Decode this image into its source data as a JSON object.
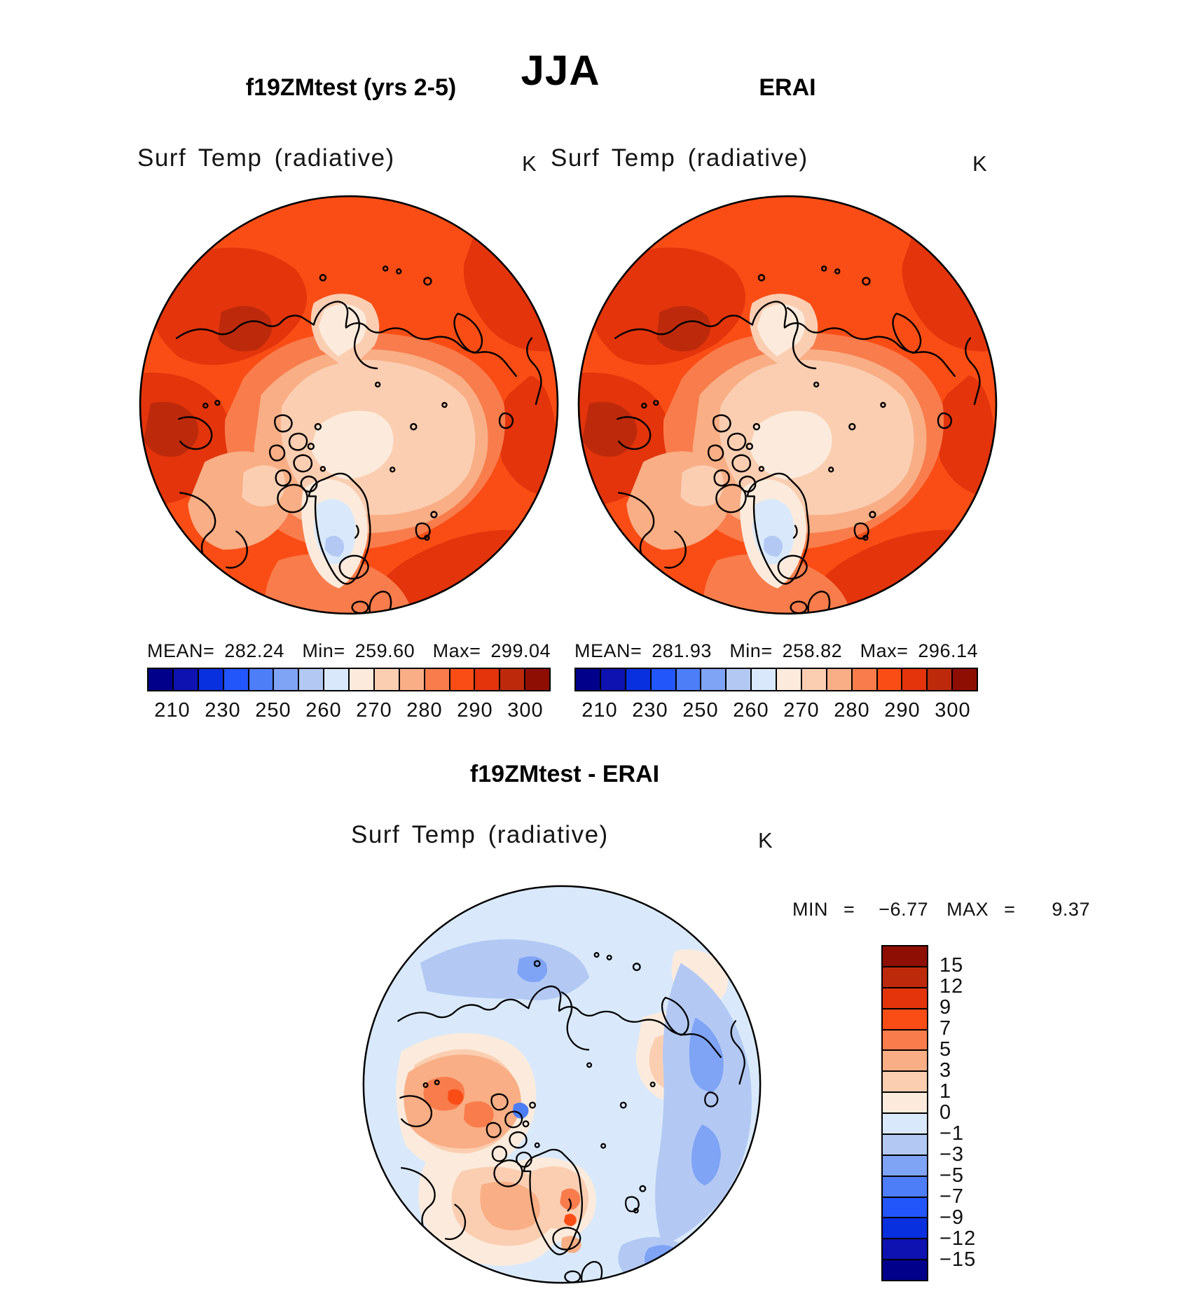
{
  "header": {
    "title": "JJA"
  },
  "palette": [
    "#00008B",
    "#0D12B0",
    "#0830DE",
    "#2255FA",
    "#4E7DF8",
    "#7FA3F5",
    "#B3C9F4",
    "#D9E9FB",
    "#FCEBDC",
    "#FBCEB2",
    "#F9AE85",
    "#F97C4C",
    "#FA4D15",
    "#E3340C",
    "#BD2A0B",
    "#8F0E03"
  ],
  "panels": {
    "model": {
      "subtitle": "f19ZMtest (yrs 2-5)",
      "var_label": "Surf Temp (radiative)",
      "units": "K",
      "stats": {
        "mean_label": "MEAN=",
        "mean": "282.24",
        "min_label": "Min=",
        "min": "259.60",
        "max_label": "Max=",
        "max": "299.04"
      },
      "colorbar_ticks": [
        "210",
        "230",
        "250",
        "260",
        "270",
        "280",
        "290",
        "300"
      ]
    },
    "obs": {
      "subtitle": "ERAI",
      "var_label": "Surf Temp (radiative)",
      "units": "K",
      "stats": {
        "mean_label": "MEAN=",
        "mean": "281.93",
        "min_label": "Min=",
        "min": "258.82",
        "max_label": "Max=",
        "max": "296.14"
      },
      "colorbar_ticks": [
        "210",
        "230",
        "250",
        "260",
        "270",
        "280",
        "290",
        "300"
      ]
    },
    "diff": {
      "subtitle": "f19ZMtest - ERAI",
      "var_label": "Surf Temp (radiative)",
      "units": "K",
      "min_label": "MIN",
      "equals": "=",
      "min": "−6.77",
      "max_label": "MAX",
      "max": "9.37",
      "colorbar_labels": [
        "15",
        "12",
        "9",
        "7",
        "5",
        "3",
        "1",
        "0",
        "−1",
        "−3",
        "−5",
        "−7",
        "−9",
        "−12",
        "−15"
      ]
    }
  },
  "chart_data": [
    {
      "type": "heatmap",
      "title": "f19ZMtest (yrs 2-5)",
      "season_title": "JJA",
      "variable": "Surf Temp (radiative)",
      "units": "K",
      "projection": "north-polar-stereographic",
      "stats": {
        "mean": 282.24,
        "min": 259.6,
        "max": 299.04
      },
      "colorbar_levels": [
        210,
        220,
        230,
        240,
        250,
        255,
        260,
        265,
        270,
        275,
        280,
        285,
        290,
        295,
        300
      ],
      "colorbar_tick_labels": [
        210,
        230,
        250,
        260,
        270,
        280,
        290,
        300
      ],
      "n_color_segments": 16,
      "legend_position": "below"
    },
    {
      "type": "heatmap",
      "title": "ERAI",
      "season_title": "JJA",
      "variable": "Surf Temp (radiative)",
      "units": "K",
      "projection": "north-polar-stereographic",
      "stats": {
        "mean": 281.93,
        "min": 258.82,
        "max": 296.14
      },
      "colorbar_levels": [
        210,
        220,
        230,
        240,
        250,
        255,
        260,
        265,
        270,
        275,
        280,
        285,
        290,
        295,
        300
      ],
      "colorbar_tick_labels": [
        210,
        230,
        250,
        260,
        270,
        280,
        290,
        300
      ],
      "n_color_segments": 16,
      "legend_position": "below"
    },
    {
      "type": "heatmap",
      "title": "f19ZMtest - ERAI",
      "variable": "Surf Temp (radiative)",
      "units": "K",
      "projection": "north-polar-stereographic",
      "stats": {
        "min": -6.77,
        "max": 9.37
      },
      "colorbar_levels": [
        -15,
        -12,
        -9,
        -7,
        -5,
        -3,
        -1,
        0,
        1,
        3,
        5,
        7,
        9,
        12,
        15
      ],
      "n_color_segments": 16,
      "legend_position": "right-vertical"
    }
  ]
}
